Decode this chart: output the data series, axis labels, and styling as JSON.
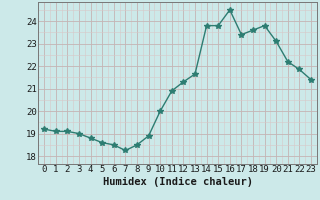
{
  "x": [
    0,
    1,
    2,
    3,
    4,
    5,
    6,
    7,
    8,
    9,
    10,
    11,
    12,
    13,
    14,
    15,
    16,
    17,
    18,
    19,
    20,
    21,
    22,
    23
  ],
  "y": [
    19.2,
    19.1,
    19.1,
    19.0,
    18.8,
    18.6,
    18.5,
    18.25,
    18.5,
    18.9,
    20.0,
    20.9,
    21.3,
    21.65,
    23.8,
    23.8,
    24.5,
    23.4,
    23.6,
    23.8,
    23.1,
    22.2,
    21.85,
    21.4
  ],
  "line_color": "#2d7d72",
  "bg_color": "#cce9e9",
  "grid_color_major": "#c4b4b4",
  "grid_color_minor": "#d8c8c8",
  "ylabel_ticks": [
    18,
    19,
    20,
    21,
    22,
    23,
    24
  ],
  "ylim": [
    17.65,
    24.85
  ],
  "xlim": [
    -0.5,
    23.5
  ],
  "xlabel": "Humidex (Indice chaleur)",
  "xlabel_fontsize": 7.5,
  "tick_fontsize": 6.5,
  "marker": "*",
  "marker_size": 4,
  "line_width": 1.0
}
